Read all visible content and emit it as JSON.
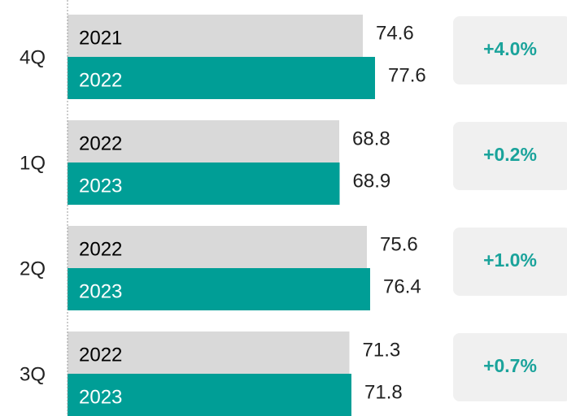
{
  "chart_data": {
    "type": "bar",
    "categories": [
      "4Q",
      "1Q",
      "2Q",
      "3Q"
    ],
    "series": [
      {
        "color": "#d9d9d9",
        "label_color": "#000000",
        "values": [
          74.6,
          68.8,
          75.6,
          71.3
        ],
        "labels": [
          "2021",
          "2022",
          "2022",
          "2022"
        ]
      },
      {
        "color": "#009e96",
        "label_color": "#ffffff",
        "values": [
          77.6,
          68.9,
          76.4,
          71.8
        ],
        "labels": [
          "2022",
          "2023",
          "2023",
          "2023"
        ]
      }
    ],
    "changes": [
      4.0,
      0.2,
      1.0,
      0.7
    ],
    "change_labels": [
      "+4.0%",
      "+0.2%",
      "+1.0%",
      "+0.7%"
    ],
    "change_color": "#1aa39b",
    "xlim": [
      0,
      100
    ]
  }
}
